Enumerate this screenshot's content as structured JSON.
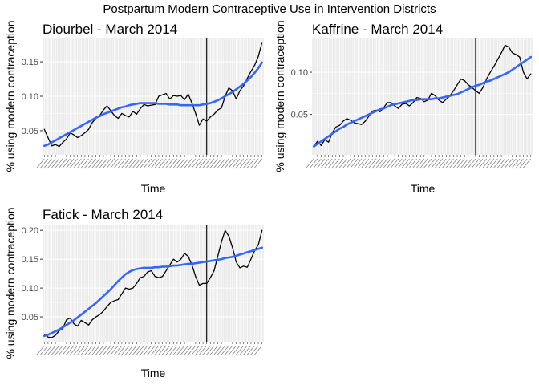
{
  "figure_title": "Postpartum Modern Contraceptive Use in Intervention Districts",
  "colors": {
    "raw_line": "#000000",
    "smooth_line": "#3366FF",
    "panel_bg": "#EBEBEB",
    "grid": "#FFFFFF",
    "event_line": "#000000"
  },
  "chart_data": [
    {
      "type": "line",
      "title": "Diourbel - March 2014",
      "xlabel": "Time",
      "ylabel": "% using modern contraception",
      "x_tick_labels": "dense rotated month labels (illegible)",
      "n_points": 60,
      "event_index": 44,
      "ylim": [
        0.015,
        0.185
      ],
      "yticks": [
        0.05,
        0.1,
        0.15
      ],
      "ytick_labels": [
        "0.05",
        "0.10",
        "0.15"
      ],
      "grid": true,
      "series": [
        {
          "values": [
            0.052,
            0.04,
            0.028,
            0.03,
            0.027,
            0.033,
            0.038,
            0.047,
            0.044,
            0.04,
            0.043,
            0.047,
            0.052,
            0.062,
            0.068,
            0.072,
            0.08,
            0.086,
            0.079,
            0.072,
            0.068,
            0.075,
            0.072,
            0.07,
            0.078,
            0.074,
            0.082,
            0.088,
            0.086,
            0.087,
            0.088,
            0.1,
            0.102,
            0.104,
            0.096,
            0.101,
            0.1,
            0.101,
            0.095,
            0.103,
            0.09,
            0.075,
            0.058,
            0.067,
            0.064,
            0.07,
            0.074,
            0.08,
            0.083,
            0.1,
            0.112,
            0.108,
            0.096,
            0.108,
            0.115,
            0.126,
            0.136,
            0.145,
            0.158,
            0.178
          ]
        },
        {
          "values": [
            0.028,
            0.03,
            0.033,
            0.036,
            0.039,
            0.042,
            0.045,
            0.048,
            0.051,
            0.054,
            0.057,
            0.06,
            0.063,
            0.066,
            0.069,
            0.071,
            0.074,
            0.076,
            0.078,
            0.08,
            0.082,
            0.084,
            0.085,
            0.087,
            0.088,
            0.089,
            0.09,
            0.09,
            0.09,
            0.09,
            0.09,
            0.089,
            0.089,
            0.089,
            0.088,
            0.088,
            0.088,
            0.087,
            0.087,
            0.087,
            0.087,
            0.087,
            0.087,
            0.088,
            0.089,
            0.09,
            0.092,
            0.094,
            0.097,
            0.1,
            0.103,
            0.106,
            0.11,
            0.114,
            0.118,
            0.123,
            0.128,
            0.134,
            0.141,
            0.149
          ]
        }
      ]
    },
    {
      "type": "line",
      "title": "Kaffrine - March 2014",
      "xlabel": "Time",
      "ylabel": "% using modern contraception",
      "x_tick_labels": "dense rotated month labels (illegible)",
      "n_points": 60,
      "event_index": 44,
      "ylim": [
        0.002,
        0.141
      ],
      "yticks": [
        0.05,
        0.1
      ],
      "ytick_labels": [
        "0.05",
        "0.10"
      ],
      "grid": true,
      "series": [
        {
          "values": [
            0.012,
            0.018,
            0.013,
            0.02,
            0.017,
            0.028,
            0.035,
            0.037,
            0.042,
            0.045,
            0.043,
            0.04,
            0.039,
            0.038,
            0.042,
            0.048,
            0.054,
            0.055,
            0.053,
            0.058,
            0.064,
            0.064,
            0.06,
            0.057,
            0.062,
            0.063,
            0.06,
            0.064,
            0.07,
            0.069,
            0.065,
            0.067,
            0.075,
            0.072,
            0.067,
            0.064,
            0.068,
            0.072,
            0.078,
            0.085,
            0.092,
            0.09,
            0.085,
            0.082,
            0.078,
            0.075,
            0.082,
            0.092,
            0.1,
            0.107,
            0.115,
            0.123,
            0.132,
            0.13,
            0.123,
            0.121,
            0.118,
            0.1,
            0.092,
            0.098
          ]
        },
        {
          "values": [
            0.012,
            0.015,
            0.018,
            0.021,
            0.024,
            0.027,
            0.03,
            0.033,
            0.035,
            0.038,
            0.04,
            0.042,
            0.044,
            0.046,
            0.048,
            0.05,
            0.052,
            0.054,
            0.056,
            0.057,
            0.059,
            0.061,
            0.062,
            0.063,
            0.064,
            0.065,
            0.066,
            0.067,
            0.067,
            0.068,
            0.068,
            0.068,
            0.068,
            0.069,
            0.069,
            0.07,
            0.071,
            0.072,
            0.073,
            0.074,
            0.076,
            0.078,
            0.08,
            0.082,
            0.084,
            0.085,
            0.087,
            0.089,
            0.09,
            0.092,
            0.094,
            0.096,
            0.098,
            0.1,
            0.103,
            0.106,
            0.109,
            0.112,
            0.115,
            0.118
          ]
        }
      ]
    },
    {
      "type": "line",
      "title": "Fatick - March 2014",
      "xlabel": "Time",
      "ylabel": "% using modern contraception",
      "x_tick_labels": "dense rotated month labels (illegible)",
      "n_points": 60,
      "event_index": 44,
      "ylim": [
        0.007,
        0.21
      ],
      "yticks": [
        0.05,
        0.1,
        0.15,
        0.2
      ],
      "ytick_labels": [
        "0.05",
        "0.10",
        "0.15",
        "0.20"
      ],
      "grid": true,
      "series": [
        {
          "values": [
            0.02,
            0.015,
            0.014,
            0.018,
            0.026,
            0.03,
            0.045,
            0.048,
            0.038,
            0.034,
            0.044,
            0.04,
            0.036,
            0.045,
            0.05,
            0.054,
            0.06,
            0.068,
            0.075,
            0.078,
            0.08,
            0.09,
            0.1,
            0.098,
            0.1,
            0.108,
            0.118,
            0.12,
            0.128,
            0.13,
            0.12,
            0.118,
            0.12,
            0.13,
            0.14,
            0.15,
            0.145,
            0.15,
            0.16,
            0.155,
            0.14,
            0.12,
            0.105,
            0.108,
            0.108,
            0.118,
            0.13,
            0.155,
            0.18,
            0.2,
            0.19,
            0.17,
            0.145,
            0.135,
            0.138,
            0.136,
            0.15,
            0.165,
            0.175,
            0.2
          ]
        },
        {
          "values": [
            0.017,
            0.019,
            0.022,
            0.025,
            0.028,
            0.032,
            0.036,
            0.04,
            0.044,
            0.049,
            0.054,
            0.059,
            0.064,
            0.069,
            0.074,
            0.08,
            0.086,
            0.092,
            0.098,
            0.105,
            0.112,
            0.118,
            0.124,
            0.128,
            0.131,
            0.133,
            0.134,
            0.135,
            0.135,
            0.135,
            0.136,
            0.136,
            0.137,
            0.137,
            0.138,
            0.139,
            0.139,
            0.14,
            0.141,
            0.142,
            0.142,
            0.143,
            0.144,
            0.145,
            0.146,
            0.147,
            0.148,
            0.149,
            0.15,
            0.152,
            0.153,
            0.154,
            0.156,
            0.158,
            0.16,
            0.162,
            0.164,
            0.166,
            0.168,
            0.17
          ]
        }
      ]
    }
  ]
}
